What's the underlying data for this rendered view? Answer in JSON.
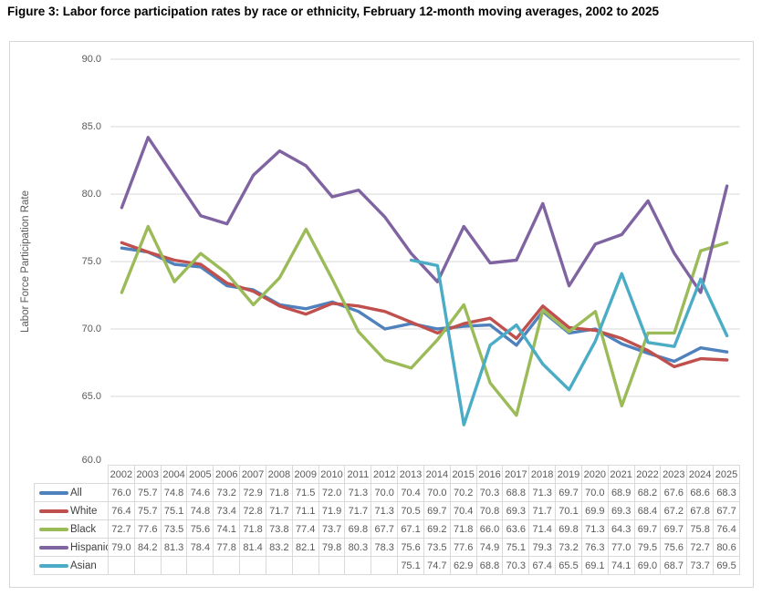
{
  "title": "Figure 3: Labor force participation rates by race or ethnicity, February 12-month moving averages, 2002 to 2025",
  "chart_data": {
    "type": "line",
    "title": "Figure 3: Labor force participation rates by race or ethnicity, February 12-month moving averages, 2002 to 2025",
    "xlabel": "",
    "ylabel": "Labor Force Participation Rate",
    "ylim": [
      60.0,
      90.0
    ],
    "ytick_step": 5.0,
    "ytick_labels": [
      "90.0",
      "85.0",
      "80.0",
      "75.0",
      "70.0",
      "65.0",
      "60.0"
    ],
    "grid": true,
    "legend_position": "data-table-left",
    "categories": [
      "2002",
      "2003",
      "2004",
      "2005",
      "2006",
      "2007",
      "2008",
      "2009",
      "2010",
      "2011",
      "2012",
      "2013",
      "2014",
      "2015",
      "2016",
      "2017",
      "2018",
      "2019",
      "2020",
      "2021",
      "2022",
      "2023",
      "2024",
      "2025"
    ],
    "series": [
      {
        "name": "All",
        "color": "#4F81BD",
        "values": [
          76.0,
          75.7,
          74.8,
          74.6,
          73.2,
          72.9,
          71.8,
          71.5,
          72.0,
          71.3,
          70.0,
          70.4,
          70.0,
          70.2,
          70.3,
          68.8,
          71.3,
          69.7,
          70.0,
          68.9,
          68.2,
          67.6,
          68.6,
          68.3
        ]
      },
      {
        "name": "White",
        "color": "#C0504D",
        "values": [
          76.4,
          75.7,
          75.1,
          74.8,
          73.4,
          72.8,
          71.7,
          71.1,
          71.9,
          71.7,
          71.3,
          70.5,
          69.7,
          70.4,
          70.8,
          69.3,
          71.7,
          70.1,
          69.9,
          69.3,
          68.4,
          67.2,
          67.8,
          67.7
        ]
      },
      {
        "name": "Black",
        "color": "#9BBB59",
        "values": [
          72.7,
          77.6,
          73.5,
          75.6,
          74.1,
          71.8,
          73.8,
          77.4,
          73.7,
          69.8,
          67.7,
          67.1,
          69.2,
          71.8,
          66.0,
          63.6,
          71.4,
          69.8,
          71.3,
          64.3,
          69.7,
          69.7,
          75.8,
          76.4
        ]
      },
      {
        "name": "Hispanic",
        "color": "#8064A2",
        "values": [
          79.0,
          84.2,
          81.3,
          78.4,
          77.8,
          81.4,
          83.2,
          82.1,
          79.8,
          80.3,
          78.3,
          75.6,
          73.5,
          77.6,
          74.9,
          75.1,
          79.3,
          73.2,
          76.3,
          77.0,
          79.5,
          75.6,
          72.7,
          80.6
        ]
      },
      {
        "name": "Asian",
        "color": "#4BACC6",
        "values": [
          null,
          null,
          null,
          null,
          null,
          null,
          null,
          null,
          null,
          null,
          null,
          75.1,
          74.7,
          62.9,
          68.8,
          70.3,
          67.4,
          65.5,
          69.1,
          74.1,
          69.0,
          68.7,
          73.7,
          69.5
        ]
      }
    ]
  }
}
